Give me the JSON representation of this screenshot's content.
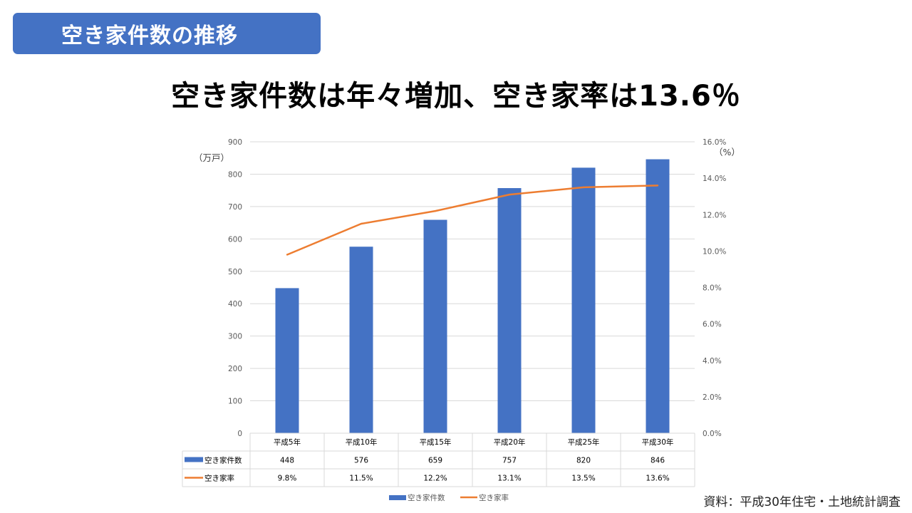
{
  "header": {
    "badge_label": "空き家件数の推移",
    "headline": "空き家件数は年々増加、空き家率は13.6％"
  },
  "source_note": "資料：平成30年住宅・土地統計調査",
  "chart_data": {
    "type": "bar+line",
    "categories": [
      "平成5年",
      "平成10年",
      "平成15年",
      "平成20年",
      "平成25年",
      "平成30年"
    ],
    "series": [
      {
        "name": "空き家件数",
        "kind": "bar",
        "axis": "left",
        "color": "#4472C4",
        "values": [
          448,
          576,
          659,
          757,
          820,
          846
        ]
      },
      {
        "name": "空き家率",
        "kind": "line",
        "axis": "right",
        "color": "#ED7D31",
        "values": [
          9.8,
          11.5,
          12.2,
          13.1,
          13.5,
          13.6
        ]
      }
    ],
    "data_table": {
      "rows": [
        {
          "label": "空き家件数",
          "cells": [
            "448",
            "576",
            "659",
            "757",
            "820",
            "846"
          ]
        },
        {
          "label": "空き家率",
          "cells": [
            "9.8%",
            "11.5%",
            "12.2%",
            "13.1%",
            "13.5%",
            "13.6%"
          ]
        }
      ]
    },
    "y_left": {
      "unit": "（万戸）",
      "ylim": [
        0,
        900
      ],
      "ticks": [
        "0",
        "100",
        "200",
        "300",
        "400",
        "500",
        "600",
        "700",
        "800",
        "900"
      ]
    },
    "y_right": {
      "unit": "（%）",
      "ylim": [
        0,
        16
      ],
      "ticks": [
        "0.0%",
        "2.0%",
        "4.0%",
        "6.0%",
        "8.0%",
        "10.0%",
        "12.0%",
        "14.0%",
        "16.0%"
      ]
    },
    "grid": true,
    "legend": {
      "placement": "bottom",
      "items": [
        "空き家件数",
        "空き家率"
      ]
    }
  }
}
